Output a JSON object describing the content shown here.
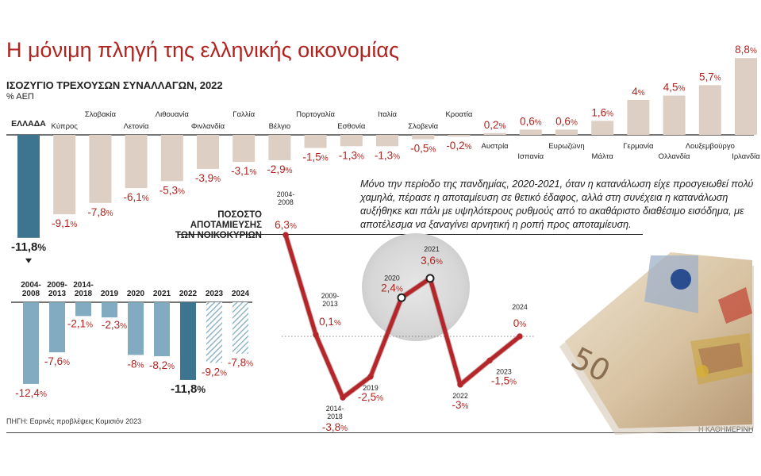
{
  "title": "Η μόνιμη πληγή της ελληνικής οικονομίας",
  "subtitle": "ΙΣΟΖΥΓΙΟ ΤΡΕΧΟΥΣΩΝ ΣΥΝΑΛΛΑΓΩΝ, 2022",
  "unit": "% ΑΕΠ",
  "note": "Μόνο την περίοδο της πανδημίας, 2020-2021, όταν η κατανάλωση είχε προσγειωθεί πολύ χαμηλά, πέρασε η αποταμίευση σε θετικό έδαφος, αλλά στη συνέχεια η κατανάλωση αυξήθηκε και πάλι με υψηλότερους ρυθμούς από το ακαθάριστο διαθέσιμο εισόδημα, με αποτέλεσμα να ξαναγίνει αρνητική η ροπή προς αποταμίευση.",
  "source": "ΠΗΓΗ: Εαρινές προβλέψεις Κομισιόν 2023",
  "credit": "Η ΚΑΘΗΜΕΡΙΝΗ",
  "savings_title": "ΠΟΣΟΣΤΟ ΑΠΟΤΑΜΙΕΥΣΗΣ ΤΩΝ ΝΟΙΚΟΚΥΡΙΩΝ",
  "colors": {
    "title_red": "#b0241f",
    "greece_bar": "#3d7591",
    "country_bar": "#ddcfc3",
    "greece_history_bar": "#82abc2",
    "line_red": "#b5262a"
  },
  "chart_data": [
    {
      "type": "bar",
      "name": "",
      "title": "ΙΣΟΖΥΓΙΟ ΤΡΕΧΟΥΣΩΝ ΣΥΝΑΛΛΑΓΩΝ, 2022",
      "ylabel": "% ΑΕΠ",
      "ylim": [
        -12,
        9
      ],
      "categories": [
        "ΕΛΛΑΔΑ",
        "Κύπρος",
        "Σλοβακία",
        "Λετονία",
        "Λιθουανία",
        "Φινλανδία",
        "Γαλλία",
        "Βέλγιο",
        "Πορτογαλία",
        "Εσθονία",
        "Ιταλία",
        "Σλοβενία",
        "Κροατία",
        "Αυστρία",
        "Ισπανία",
        "Ευρωζώνη",
        "Μάλτα",
        "Γερμανία",
        "Ολλανδία",
        "Λουξεμβούργο",
        "Ιρλανδία"
      ],
      "values": [
        -11.8,
        -9.1,
        -7.8,
        -6.1,
        -5.3,
        -3.9,
        -3.1,
        -2.9,
        -1.5,
        -1.3,
        -1.3,
        -0.5,
        -0.2,
        0.2,
        0.6,
        0.6,
        1.6,
        4,
        4.5,
        5.7,
        8.8
      ],
      "value_labels": [
        "-11,8",
        "-9,1",
        "-7,8",
        "-6,1",
        "-5,3",
        "-3,9",
        "-3,1",
        "-2,9",
        "-1,5",
        "-1,3",
        "-1,3",
        "-0,5",
        "-0,2",
        "0,2",
        "0,6",
        "0,6",
        "1,6",
        "4",
        "4,5",
        "5,7",
        "8,8"
      ],
      "highlight": "ΕΛΛΑΔΑ"
    },
    {
      "type": "bar",
      "name": "",
      "categories": [
        "2004-\n2008",
        "2009-\n2013",
        "2014-\n2018",
        "2019",
        "2020",
        "2021",
        "2022",
        "2023",
        "2024"
      ],
      "values": [
        -12.4,
        -7.6,
        -2.1,
        -2.3,
        -8,
        -8.2,
        -11.8,
        -9.2,
        -7.8
      ],
      "value_labels": [
        "-12,4",
        "-7,6",
        "-2,1",
        "-2,3",
        "-8",
        "-8,2",
        "-11,8",
        "-9,2",
        "-7,8"
      ],
      "forecast": [
        "2023",
        "2024"
      ],
      "highlight": "2022",
      "ylim": [
        -13,
        0
      ]
    },
    {
      "type": "line",
      "title": "ΠΟΣΟΣΤΟ ΑΠΟΤΑΜΙΕΥΣΗΣ ΤΩΝ ΝΟΙΚΟΚΥΡΙΩΝ",
      "categories": [
        "2004-\n2008",
        "2009-\n2013",
        "2014-\n2018",
        "2019",
        "2020",
        "2021",
        "2022",
        "2023",
        "2024"
      ],
      "values": [
        6.3,
        0.1,
        -3.8,
        -2.5,
        2.4,
        3.6,
        -3,
        -1.5,
        0
      ],
      "value_labels": [
        "6,3",
        "0,1",
        "-3,8",
        "-2,5",
        "2,4",
        "3,6",
        "-3",
        "-1,5",
        "0"
      ],
      "highlight_range": [
        "2020",
        "2021"
      ],
      "ylim": [
        -4,
        7
      ]
    }
  ]
}
